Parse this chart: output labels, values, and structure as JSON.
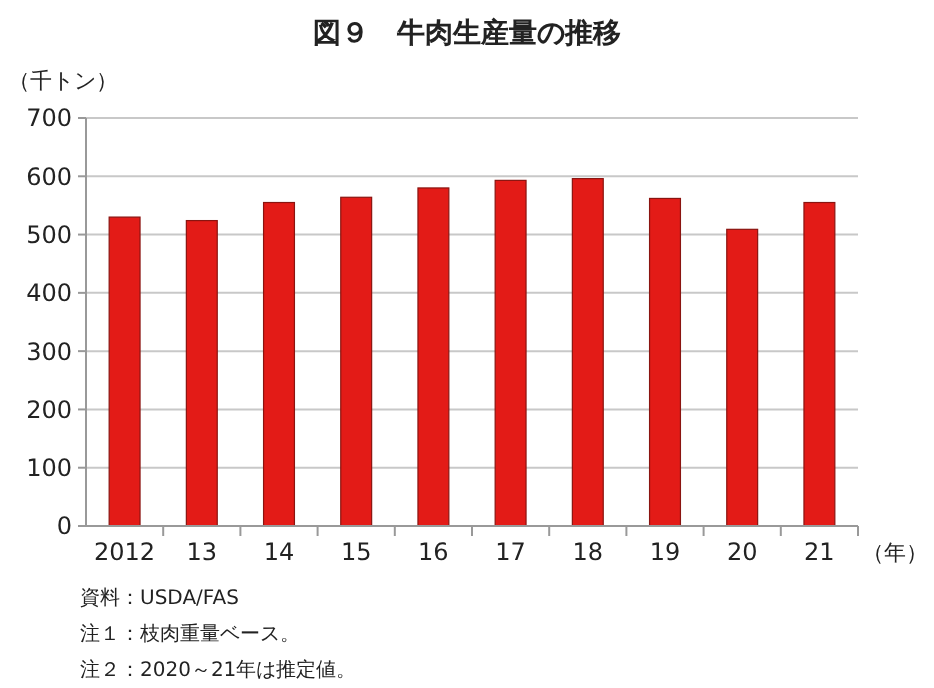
{
  "chart_data": {
    "type": "bar",
    "title": "図９　牛肉生産量の推移",
    "ylabel": "（千トン）",
    "xlabel": "（年）",
    "categories": [
      "2012",
      "13",
      "14",
      "15",
      "16",
      "17",
      "18",
      "19",
      "20",
      "21"
    ],
    "values": [
      530,
      524,
      555,
      564,
      580,
      593,
      596,
      562,
      509,
      555
    ],
    "color": "#e31b17",
    "ylim": [
      0,
      700
    ],
    "yticks": [
      0,
      100,
      200,
      300,
      400,
      500,
      600,
      700
    ],
    "grid": "y",
    "annotations": [
      "資料：USDA/FAS",
      "注１：枝肉重量ベース。",
      "注２：2020～21年は推定値。"
    ]
  }
}
